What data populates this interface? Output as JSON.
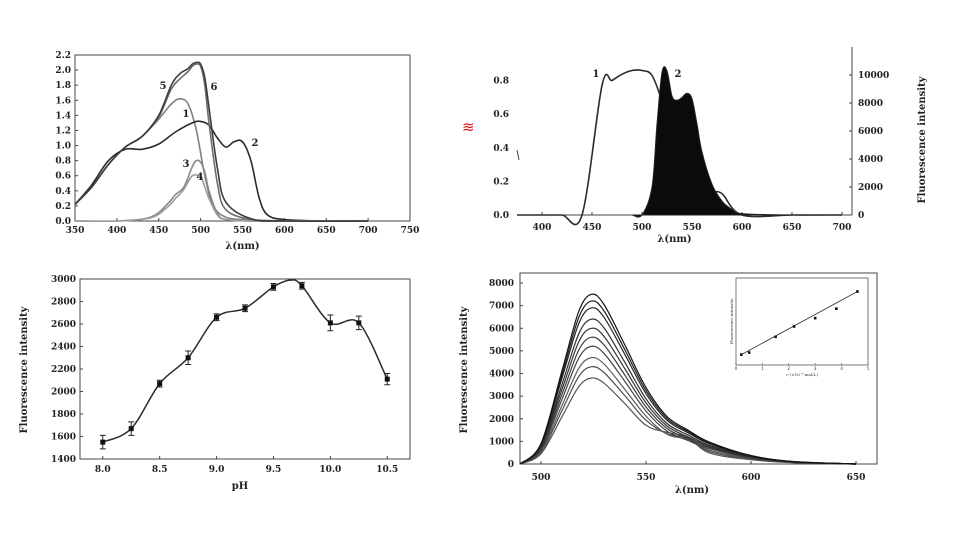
{
  "chart_data": [
    {
      "type": "line",
      "title": "",
      "xlabel": "λ(nm)",
      "ylabel": "",
      "xlim": [
        350,
        750
      ],
      "ylim": [
        0,
        2.2
      ],
      "x_ticks": [
        "350",
        "400",
        "450",
        "500",
        "550",
        "600",
        "650",
        "700",
        "750"
      ],
      "y_ticks": [
        "0.0",
        "0.2",
        "0.4",
        "0.6",
        "0.8",
        "1.0",
        "1.2",
        "1.4",
        "1.6",
        "1.8",
        "2.0",
        "2.2"
      ],
      "series": [
        {
          "name": "1",
          "x": [
            350,
            370,
            390,
            410,
            430,
            450,
            465,
            475,
            485,
            495,
            505,
            515,
            530,
            550,
            570,
            600,
            650,
            700
          ],
          "y": [
            0.22,
            0.45,
            0.75,
            0.98,
            1.12,
            1.35,
            1.55,
            1.62,
            1.55,
            1.2,
            0.6,
            0.2,
            0.05,
            0.02,
            0.01,
            0.0,
            0.0,
            0.0
          ]
        },
        {
          "name": "2",
          "x": [
            350,
            370,
            390,
            410,
            430,
            450,
            470,
            490,
            500,
            510,
            520,
            530,
            540,
            550,
            560,
            570,
            580,
            600,
            650,
            700
          ],
          "y": [
            0.22,
            0.48,
            0.8,
            0.95,
            0.95,
            1.02,
            1.18,
            1.3,
            1.32,
            1.27,
            1.1,
            0.98,
            1.05,
            1.05,
            0.8,
            0.3,
            0.08,
            0.02,
            0.0,
            0.0
          ]
        },
        {
          "name": "3",
          "x": [
            350,
            400,
            440,
            460,
            470,
            480,
            490,
            495,
            500,
            505,
            510,
            520,
            530,
            560,
            600,
            700
          ],
          "y": [
            0.0,
            0.0,
            0.05,
            0.22,
            0.35,
            0.45,
            0.72,
            0.8,
            0.78,
            0.65,
            0.4,
            0.1,
            0.02,
            0.0,
            0.0,
            0.0
          ]
        },
        {
          "name": "4",
          "x": [
            350,
            400,
            440,
            460,
            470,
            480,
            490,
            500,
            505,
            510,
            520,
            530,
            560,
            600,
            700
          ],
          "y": [
            0.0,
            0.0,
            0.04,
            0.18,
            0.3,
            0.42,
            0.6,
            0.58,
            0.45,
            0.3,
            0.08,
            0.02,
            0.0,
            0.0,
            0.0
          ]
        },
        {
          "name": "5",
          "x": [
            350,
            370,
            390,
            410,
            430,
            450,
            465,
            475,
            485,
            490,
            495,
            500,
            505,
            510,
            520,
            530,
            560,
            600,
            700
          ],
          "y": [
            0.22,
            0.45,
            0.75,
            0.98,
            1.12,
            1.38,
            1.75,
            1.88,
            1.98,
            2.05,
            2.08,
            2.05,
            1.8,
            1.3,
            0.5,
            0.15,
            0.02,
            0.0,
            0.0
          ]
        },
        {
          "name": "6",
          "x": [
            350,
            370,
            390,
            410,
            430,
            450,
            465,
            475,
            485,
            490,
            495,
            500,
            505,
            510,
            520,
            530,
            560,
            600,
            700
          ],
          "y": [
            0.22,
            0.45,
            0.75,
            0.98,
            1.12,
            1.4,
            1.8,
            1.95,
            2.02,
            2.08,
            2.1,
            2.08,
            1.9,
            1.5,
            0.7,
            0.25,
            0.03,
            0.0,
            0.0
          ]
        }
      ],
      "curve_labels": [
        "5",
        "6",
        "1",
        "2",
        "3",
        "4"
      ]
    },
    {
      "type": "area",
      "title": "",
      "xlabel": "λ(nm)",
      "ylabel": "Fluorescence intensity",
      "xlim": [
        375,
        710
      ],
      "ylim": [
        0,
        1.0
      ],
      "y2lim": [
        0,
        10000
      ],
      "x_ticks": [
        "400",
        "450",
        "500",
        "550",
        "600",
        "650",
        "700"
      ],
      "y_ticks": [
        "0.0",
        "0.2",
        "0.4",
        "0.6",
        "0.8"
      ],
      "y2_ticks": [
        "0",
        "2000",
        "4000",
        "6000",
        "8000",
        "10000"
      ],
      "series": [
        {
          "name": "1",
          "x": [
            375,
            400,
            420,
            440,
            460,
            470,
            480,
            490,
            500,
            510,
            520,
            530,
            540,
            550,
            560,
            570,
            580,
            600,
            650,
            700
          ],
          "y": [
            0,
            0,
            0,
            0,
            0.88,
            0.92,
            0.97,
            1.0,
            1.0,
            0.96,
            0.75,
            0.45,
            0.22,
            0.1,
            0.04,
            0.02,
            0.01,
            0.0,
            0.0,
            0.0
          ]
        },
        {
          "name": "2",
          "x": [
            490,
            500,
            510,
            515,
            520,
            525,
            530,
            535,
            540,
            545,
            550,
            555,
            560,
            570,
            580,
            590,
            600,
            650,
            700
          ],
          "y": [
            0,
            0,
            2000,
            6500,
            10200,
            10300,
            8500,
            8200,
            8400,
            8700,
            8300,
            6500,
            4500,
            2200,
            1000,
            400,
            100,
            0,
            0
          ]
        }
      ]
    },
    {
      "type": "line",
      "title": "",
      "xlabel": "pH",
      "ylabel": "Fluorescence intensity",
      "xlim": [
        7.8,
        10.7
      ],
      "ylim": [
        1400,
        3000
      ],
      "x_ticks": [
        "8.0",
        "8.5",
        "9.0",
        "9.5",
        "10.0",
        "10.5"
      ],
      "y_ticks": [
        "1400",
        "1600",
        "1800",
        "2000",
        "2200",
        "2400",
        "2600",
        "2800",
        "3000"
      ],
      "x": [
        8.0,
        8.25,
        8.5,
        8.75,
        9.0,
        9.25,
        9.5,
        9.75,
        10.0,
        10.25,
        10.5
      ],
      "values": [
        1550,
        1670,
        2070,
        2300,
        2660,
        2740,
        2930,
        2940,
        2610,
        2610,
        2110
      ],
      "error": [
        60,
        60,
        30,
        60,
        30,
        30,
        30,
        30,
        70,
        60,
        50
      ],
      "peak": {
        "x": 9.65,
        "y": 2990
      }
    },
    {
      "type": "line",
      "title": "",
      "xlabel": "λ(nm)",
      "ylabel": "Fluorescence intensity",
      "xlim": [
        490,
        660
      ],
      "ylim": [
        0,
        8000
      ],
      "x_ticks": [
        "500",
        "550",
        "600",
        "650"
      ],
      "y_ticks": [
        "0",
        "1000",
        "2000",
        "3000",
        "4000",
        "5000",
        "6000",
        "7000",
        "8000"
      ],
      "peaks": [
        3800,
        4300,
        4700,
        5200,
        5600,
        6000,
        6400,
        6900,
        7200,
        7500
      ],
      "inset": {
        "xlim": [
          0,
          5
        ],
        "ylim": [
          0,
          2800
        ],
        "x_ticks": [
          "0",
          "1",
          "2",
          "3",
          "4",
          "5"
        ],
        "ylabel": "Fluorescence intensity",
        "xlabel": "c (×10⁻⁵ mol/L)",
        "points": [
          [
            0.2,
            350
          ],
          [
            0.5,
            420
          ],
          [
            1.5,
            950
          ],
          [
            2.2,
            1300
          ],
          [
            3.0,
            1580
          ],
          [
            3.8,
            1900
          ],
          [
            4.6,
            2480
          ]
        ]
      }
    }
  ],
  "marker": {
    "symbol": "≋"
  }
}
